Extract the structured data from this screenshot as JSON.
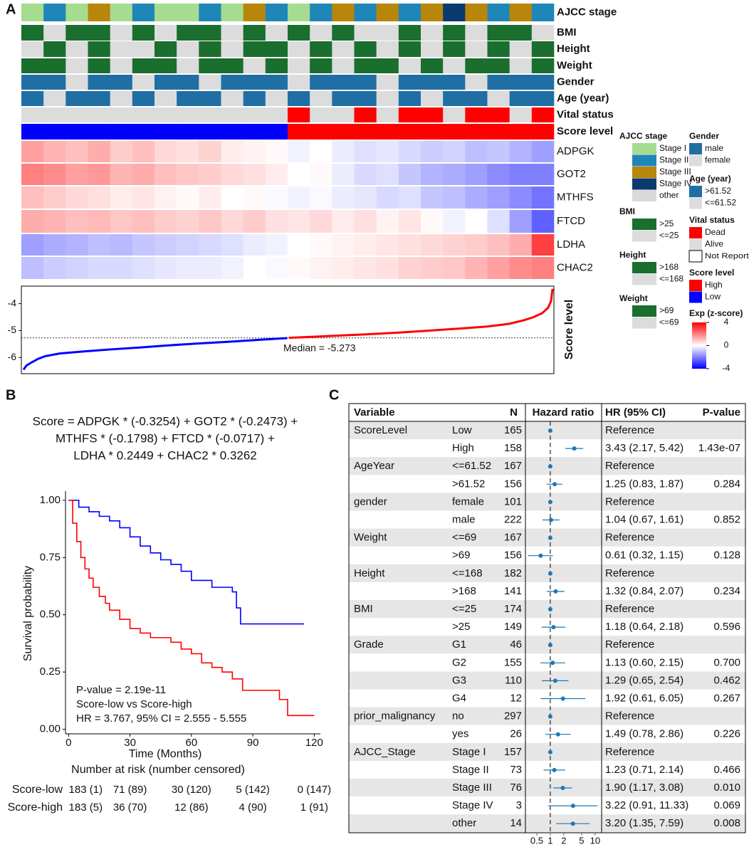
{
  "panel_labels": [
    "A",
    "B",
    "C"
  ],
  "heatmap": {
    "type": "heatmap",
    "annotations": [
      {
        "name": "AJCC stage",
        "values": [
          "Stage I",
          "Stage II",
          "Stage I",
          "Stage III",
          "Stage I",
          "Stage II",
          "Stage I",
          "Stage I",
          "Stage II",
          "Stage I",
          "Stage III",
          "Stage II",
          "Stage I",
          "Stage II",
          "Stage III",
          "Stage II",
          "Stage III",
          "Stage II",
          "Stage III",
          "Stage IV",
          "Stage III",
          "Stage II",
          "Stage III",
          "Stage II"
        ]
      },
      {
        "name": "BMI",
        "values": [
          ">25",
          "<=25",
          ">25",
          ">25",
          "<=25",
          ">25",
          "<=25",
          ">25",
          ">25",
          "<=25",
          ">25",
          "<=25",
          ">25",
          "<=25",
          ">25",
          "<=25",
          "<=25",
          ">25",
          "<=25",
          ">25",
          "<=25",
          ">25",
          ">25",
          "<=25"
        ]
      },
      {
        "name": "Height",
        "values": [
          "<=168",
          ">168",
          "<=168",
          ">168",
          "<=168",
          "<=168",
          ">168",
          "<=168",
          ">168",
          "<=168",
          ">168",
          ">168",
          "<=168",
          ">168",
          "<=168",
          ">168",
          "<=168",
          ">168",
          "<=168",
          ">168",
          "<=168",
          ">168",
          "<=168",
          ">168"
        ]
      },
      {
        "name": "Weight",
        "values": [
          ">69",
          ">69",
          "<=69",
          ">69",
          "<=69",
          ">69",
          ">69",
          "<=69",
          ">69",
          ">69",
          "<=69",
          ">69",
          "<=69",
          ">69",
          "<=69",
          ">69",
          ">69",
          "<=69",
          ">69",
          "<=69",
          ">69",
          ">69",
          "<=69",
          ">69"
        ]
      },
      {
        "name": "Gender",
        "values": [
          "male",
          "male",
          "female",
          "male",
          "male",
          "female",
          "male",
          "male",
          "female",
          "male",
          "male",
          "male",
          "female",
          "male",
          "male",
          "male",
          "female",
          "male",
          "male",
          "male",
          "female",
          "male",
          "male",
          "male"
        ]
      },
      {
        "name": "Age (year)",
        "values": [
          ">61.52",
          "<=61.52",
          ">61.52",
          ">61.52",
          "<=61.52",
          ">61.52",
          "<=61.52",
          ">61.52",
          ">61.52",
          "<=61.52",
          ">61.52",
          "<=61.52",
          ">61.52",
          "<=61.52",
          ">61.52",
          ">61.52",
          "<=61.52",
          ">61.52",
          "<=61.52",
          ">61.52",
          ">61.52",
          "<=61.52",
          ">61.52",
          ">61.52"
        ]
      },
      {
        "name": "Vital status",
        "values": [
          "Alive",
          "Alive",
          "Alive",
          "Alive",
          "Alive",
          "Alive",
          "Alive",
          "Alive",
          "Alive",
          "Alive",
          "Alive",
          "Alive",
          "Dead",
          "Alive",
          "Alive",
          "Dead",
          "Alive",
          "Dead",
          "Dead",
          "Alive",
          "Dead",
          "Dead",
          "Alive",
          "Dead"
        ]
      },
      {
        "name": "Score level",
        "values": [
          "Low",
          "Low",
          "Low",
          "Low",
          "Low",
          "Low",
          "Low",
          "Low",
          "Low",
          "Low",
          "Low",
          "Low",
          "High",
          "High",
          "High",
          "High",
          "High",
          "High",
          "High",
          "High",
          "High",
          "High",
          "High",
          "High"
        ]
      }
    ],
    "genes": [
      {
        "name": "ADPGK",
        "values": [
          1.5,
          1.2,
          1,
          1.3,
          0.8,
          1,
          0.6,
          0.5,
          0.7,
          0.3,
          0.2,
          0.1,
          -0.2,
          0,
          -0.3,
          -0.5,
          -0.4,
          -0.6,
          -0.8,
          -0.7,
          -1,
          -0.9,
          -1.2,
          -1.5
        ]
      },
      {
        "name": "GOT2",
        "values": [
          2,
          1.8,
          1.5,
          1.6,
          1.2,
          1.3,
          1,
          0.9,
          0.8,
          0.6,
          0.5,
          0.3,
          0,
          0.1,
          -0.3,
          -0.6,
          -0.5,
          -0.9,
          -1.2,
          -1.3,
          -1.5,
          -1.8,
          -2,
          -2
        ]
      },
      {
        "name": "MTHFS",
        "values": [
          1,
          0.8,
          0.6,
          0.5,
          0.3,
          0.4,
          0.2,
          0.1,
          0.3,
          0,
          0.1,
          -0.1,
          -0.2,
          -0.1,
          -0.3,
          -0.4,
          -0.6,
          -0.5,
          -0.9,
          -1,
          -1.3,
          -1.5,
          -1.8,
          -2.2
        ]
      },
      {
        "name": "FTCD",
        "values": [
          1.3,
          1.2,
          1,
          1.1,
          0.9,
          1,
          0.8,
          0.7,
          0.9,
          0.6,
          0.8,
          0.5,
          0.4,
          0.6,
          0.3,
          0.5,
          0.2,
          0.4,
          0.1,
          -0.2,
          0,
          -0.5,
          -1.5,
          -2.5
        ]
      },
      {
        "name": "LDHA",
        "values": [
          -1.5,
          -1.3,
          -1.2,
          -1,
          -1.1,
          -0.9,
          -0.8,
          -0.7,
          -0.6,
          -0.5,
          -0.3,
          -0.2,
          0,
          0.1,
          0.2,
          0.3,
          0.4,
          0.5,
          0.6,
          0.7,
          0.8,
          1,
          1.3,
          3
        ]
      },
      {
        "name": "CHAC2",
        "values": [
          -1,
          -0.8,
          -0.7,
          -0.6,
          -0.6,
          -0.5,
          -0.4,
          -0.3,
          -0.3,
          -0.2,
          0,
          -0.1,
          0.1,
          0.2,
          0.3,
          0.4,
          0.5,
          0.7,
          0.8,
          0.9,
          1.2,
          1.5,
          1.8,
          2
        ]
      }
    ],
    "color_scale": {
      "colors": [
        "#0000ff",
        "#ffffff",
        "#ff0000"
      ],
      "lim": [
        -4,
        4
      ]
    }
  },
  "legends": [
    {
      "title": "AJCC stage",
      "items": [
        {
          "label": "Stage I",
          "color": "#a6dc8f"
        },
        {
          "label": "Stage II",
          "color": "#1f86b8"
        },
        {
          "label": "Stage III",
          "color": "#b8860b"
        },
        {
          "label": "Stage IV",
          "color": "#0b3a6e"
        },
        {
          "label": "other",
          "color": "#d9d9d9"
        }
      ]
    },
    {
      "title": "BMI",
      "items": [
        {
          "label": ">25",
          "color": "#1a6e2e"
        },
        {
          "label": "<=25",
          "color": "#dcdcdc"
        }
      ]
    },
    {
      "title": "Height",
      "items": [
        {
          "label": ">168",
          "color": "#1a6e2e"
        },
        {
          "label": "<=168",
          "color": "#dcdcdc"
        }
      ]
    },
    {
      "title": "Weight",
      "items": [
        {
          "label": ">69",
          "color": "#1a6e2e"
        },
        {
          "label": "<=69",
          "color": "#dcdcdc"
        }
      ]
    },
    {
      "title": "Gender",
      "items": [
        {
          "label": "male",
          "color": "#1f6fa5"
        },
        {
          "label": "female",
          "color": "#dcdcdc"
        }
      ]
    },
    {
      "title": "Age (year)",
      "items": [
        {
          "label": ">61.52",
          "color": "#1f6fa5"
        },
        {
          "label": "<=61.52",
          "color": "#dcdcdc"
        }
      ]
    },
    {
      "title": "Vital status",
      "items": [
        {
          "label": "Dead",
          "color": "#ff0000"
        },
        {
          "label": "Alive",
          "color": "#dcdcdc"
        },
        {
          "label": "Not Reported",
          "color": "#ffffff"
        }
      ]
    },
    {
      "title": "Score level",
      "items": [
        {
          "label": "High",
          "color": "#ff0000"
        },
        {
          "label": "Low",
          "color": "#0000ff"
        }
      ]
    },
    {
      "title": "Exp (z-score)",
      "ticks": [
        4,
        0,
        -4
      ]
    }
  ],
  "score_plot": {
    "type": "line",
    "ylabel": "Score level",
    "median": -5.273,
    "annotation": "Median = -5.273",
    "xlim": [
      0,
      365
    ],
    "ylim": [
      -6.6,
      -3.35
    ],
    "yticks": [
      -6,
      -5,
      -4
    ],
    "series": [
      {
        "color": "#0000ff",
        "x": [
          0,
          2,
          5,
          10,
          15,
          25,
          40,
          60,
          80,
          100,
          120,
          140,
          160,
          182
        ],
        "values": [
          -6.45,
          -6.3,
          -6.2,
          -6.05,
          -5.95,
          -5.85,
          -5.78,
          -5.7,
          -5.63,
          -5.55,
          -5.48,
          -5.42,
          -5.35,
          -5.28
        ]
      },
      {
        "color": "#ff0000",
        "x": [
          183,
          200,
          220,
          240,
          260,
          280,
          300,
          320,
          335,
          345,
          352,
          358,
          362,
          364,
          365
        ],
        "values": [
          -5.27,
          -5.23,
          -5.18,
          -5.13,
          -5.07,
          -5.0,
          -4.93,
          -4.85,
          -4.75,
          -4.62,
          -4.5,
          -4.35,
          -4.15,
          -3.9,
          -3.45
        ]
      }
    ]
  },
  "survival": {
    "type": "line",
    "formula": [
      "Score = ADPGK * (-0.3254) + GOT2 * (-0.2473) +",
      "MTHFS * (-0.1798) + FTCD * (-0.0717) +",
      "LDHA * 0.2449 + CHAC2 * 0.3262"
    ],
    "xlabel": "Time (Months)",
    "ylabel": "Survival probability",
    "xlim": [
      -1.5,
      123
    ],
    "ylim": [
      -0.02,
      1.04
    ],
    "xticks": [
      0,
      30,
      60,
      90,
      120
    ],
    "yticks": [
      {
        "value": 0,
        "label": "0.00"
      },
      {
        "value": 0.25,
        "label": "0.25"
      },
      {
        "value": 0.5,
        "label": "0.50"
      },
      {
        "value": 0.75,
        "label": "0.75"
      },
      {
        "value": 1,
        "label": "1.00"
      }
    ],
    "annotations": [
      "P-value = 2.19e-11",
      "Score-low vs Score-high",
      "HR = 3.767, 95% CI = 2.555 - 5.555"
    ],
    "series": [
      {
        "name": "Score-low",
        "color": "#0000ff",
        "x": [
          0,
          5,
          10,
          15,
          20,
          25,
          30,
          35,
          40,
          45,
          50,
          55,
          60,
          70,
          80,
          82,
          84,
          115
        ],
        "values": [
          1,
          0.97,
          0.95,
          0.93,
          0.91,
          0.88,
          0.84,
          0.8,
          0.77,
          0.74,
          0.72,
          0.69,
          0.65,
          0.62,
          0.6,
          0.53,
          0.46,
          0.46
        ]
      },
      {
        "name": "Score-high",
        "color": "#ff0000",
        "x": [
          0,
          2,
          4,
          6,
          8,
          10,
          12,
          15,
          18,
          20,
          25,
          30,
          35,
          40,
          50,
          55,
          60,
          65,
          70,
          75,
          80,
          85,
          100,
          103,
          107,
          120
        ],
        "values": [
          1,
          0.9,
          0.82,
          0.75,
          0.7,
          0.66,
          0.62,
          0.58,
          0.55,
          0.52,
          0.48,
          0.44,
          0.42,
          0.4,
          0.38,
          0.35,
          0.33,
          0.29,
          0.27,
          0.25,
          0.22,
          0.17,
          0.17,
          0.13,
          0.06,
          0.06
        ]
      }
    ],
    "risk_table": {
      "title": "Number at risk (number censored)",
      "rows": [
        [
          "183 (1)",
          "71 (89)",
          "30 (120)",
          "5 (142)",
          "0 (147)"
        ],
        [
          "183 (5)",
          "36 (70)",
          "12 (86)",
          "4 (90)",
          "1 (91)"
        ]
      ]
    }
  },
  "forest": {
    "type": "forest",
    "headers": [
      "Variable",
      "N",
      "Hazard ratio",
      "HR (95% CI)",
      "P-value"
    ],
    "log_scale": true,
    "xlim": [
      0.3,
      13
    ],
    "xticks": [
      0.5,
      1,
      2,
      5,
      10
    ],
    "color": "#1f77b4",
    "rows": [
      {
        "variable": "ScoreLevel",
        "level": "Low",
        "n": 165,
        "hr": 1,
        "lo": null,
        "hi": null,
        "hr_label": "Reference",
        "p": null
      },
      {
        "variable": null,
        "level": "High",
        "n": 158,
        "hr": 3.43,
        "lo": 2.17,
        "hi": 5.42,
        "hr_label": "3.43 (2.17, 5.42)",
        "p": "1.43e-07"
      },
      {
        "variable": "AgeYear",
        "level": "<=61.52",
        "n": 167,
        "hr": 1,
        "lo": null,
        "hi": null,
        "hr_label": "Reference",
        "p": null
      },
      {
        "variable": null,
        "level": ">61.52",
        "n": 156,
        "hr": 1.25,
        "lo": 0.83,
        "hi": 1.87,
        "hr_label": "1.25 (0.83, 1.87)",
        "p": "0.284"
      },
      {
        "variable": "gender",
        "level": "female",
        "n": 101,
        "hr": 1,
        "lo": null,
        "hi": null,
        "hr_label": "Reference",
        "p": null
      },
      {
        "variable": null,
        "level": "male",
        "n": 222,
        "hr": 1.04,
        "lo": 0.67,
        "hi": 1.61,
        "hr_label": "1.04 (0.67, 1.61)",
        "p": "0.852"
      },
      {
        "variable": "Weight",
        "level": "<=69",
        "n": 167,
        "hr": 1,
        "lo": null,
        "hi": null,
        "hr_label": "Reference",
        "p": null
      },
      {
        "variable": null,
        "level": ">69",
        "n": 156,
        "hr": 0.61,
        "lo": 0.32,
        "hi": 1.15,
        "hr_label": "0.61 (0.32, 1.15)",
        "p": "0.128"
      },
      {
        "variable": "Height",
        "level": "<=168",
        "n": 182,
        "hr": 1,
        "lo": null,
        "hi": null,
        "hr_label": "Reference",
        "p": null
      },
      {
        "variable": null,
        "level": ">168",
        "n": 141,
        "hr": 1.32,
        "lo": 0.84,
        "hi": 2.07,
        "hr_label": "1.32 (0.84, 2.07)",
        "p": "0.234"
      },
      {
        "variable": "BMI",
        "level": "<=25",
        "n": 174,
        "hr": 1,
        "lo": null,
        "hi": null,
        "hr_label": "Reference",
        "p": null
      },
      {
        "variable": null,
        "level": ">25",
        "n": 149,
        "hr": 1.18,
        "lo": 0.64,
        "hi": 2.18,
        "hr_label": "1.18 (0.64, 2.18)",
        "p": "0.596"
      },
      {
        "variable": "Grade",
        "level": "G1",
        "n": 46,
        "hr": 1,
        "lo": null,
        "hi": null,
        "hr_label": "Reference",
        "p": null
      },
      {
        "variable": null,
        "level": "G2",
        "n": 155,
        "hr": 1.13,
        "lo": 0.6,
        "hi": 2.15,
        "hr_label": "1.13 (0.60, 2.15)",
        "p": "0.700"
      },
      {
        "variable": null,
        "level": "G3",
        "n": 110,
        "hr": 1.29,
        "lo": 0.65,
        "hi": 2.54,
        "hr_label": "1.29 (0.65, 2.54)",
        "p": "0.462"
      },
      {
        "variable": null,
        "level": "G4",
        "n": 12,
        "hr": 1.92,
        "lo": 0.61,
        "hi": 6.05,
        "hr_label": "1.92 (0.61, 6.05)",
        "p": "0.267"
      },
      {
        "variable": "prior_malignancy",
        "level": "no",
        "n": 297,
        "hr": 1,
        "lo": null,
        "hi": null,
        "hr_label": "Reference",
        "p": null
      },
      {
        "variable": null,
        "level": "yes",
        "n": 26,
        "hr": 1.49,
        "lo": 0.78,
        "hi": 2.86,
        "hr_label": "1.49 (0.78, 2.86)",
        "p": "0.226"
      },
      {
        "variable": "AJCC_Stage",
        "level": "Stage I",
        "n": 157,
        "hr": 1,
        "lo": null,
        "hi": null,
        "hr_label": "Reference",
        "p": null
      },
      {
        "variable": null,
        "level": "Stage II",
        "n": 73,
        "hr": 1.23,
        "lo": 0.71,
        "hi": 2.14,
        "hr_label": "1.23 (0.71, 2.14)",
        "p": "0.466"
      },
      {
        "variable": null,
        "level": "Stage III",
        "n": 76,
        "hr": 1.9,
        "lo": 1.17,
        "hi": 3.08,
        "hr_label": "1.90 (1.17, 3.08)",
        "p": "0.010"
      },
      {
        "variable": null,
        "level": "Stage IV",
        "n": 3,
        "hr": 3.22,
        "lo": 0.91,
        "hi": 11.33,
        "hr_label": "3.22 (0.91, 11.33)",
        "p": "0.069"
      },
      {
        "variable": null,
        "level": "other",
        "n": 14,
        "hr": 3.2,
        "lo": 1.35,
        "hi": 7.59,
        "hr_label": "3.20 (1.35, 7.59)",
        "p": "0.008"
      }
    ]
  }
}
